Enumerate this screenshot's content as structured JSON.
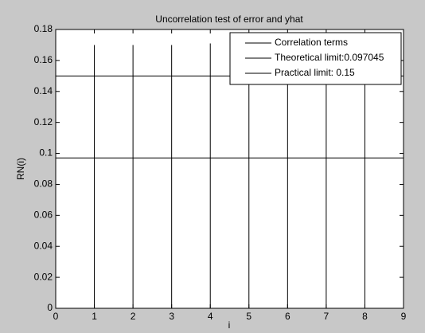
{
  "chart_data": {
    "type": "stem",
    "title": "Uncorrelation test of error and yhat",
    "xlabel": "i",
    "ylabel": "RN(i)",
    "xlim": [
      0,
      9
    ],
    "xticks": [
      0,
      1,
      2,
      3,
      4,
      5,
      6,
      7,
      8,
      9
    ],
    "ylim": [
      0,
      0.18
    ],
    "yticks": [
      0,
      0.02,
      0.04,
      0.06,
      0.08,
      0.1,
      0.12,
      0.14,
      0.16,
      0.18
    ],
    "series": [
      {
        "name": "Correlation terms",
        "color": "#000000",
        "x": [
          1,
          2,
          3,
          4,
          5,
          6,
          7,
          8
        ],
        "values": [
          0.17,
          0.17,
          0.17,
          0.171,
          0.17,
          0.17,
          0.17,
          0.17
        ]
      }
    ],
    "hlines": [
      {
        "name": "Theoretical limit:0.097045",
        "color": "#000000",
        "value": 0.097045
      },
      {
        "name": "Practical limit: 0.15",
        "color": "#000000",
        "value": 0.15
      }
    ],
    "legend": "upper right"
  }
}
